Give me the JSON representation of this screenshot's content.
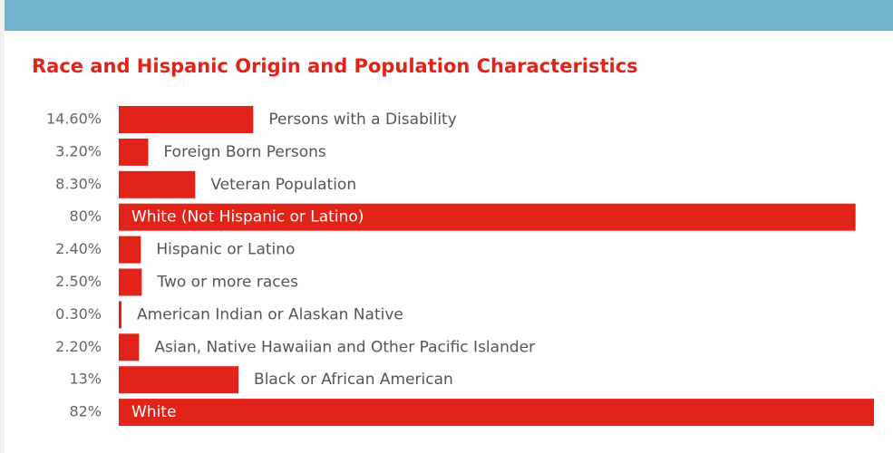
{
  "chart_data": {
    "type": "bar",
    "orientation": "horizontal",
    "title": "Race and Hispanic Origin and Population Characteristics",
    "categories": [
      "Persons with a Disability",
      "Foreign Born Persons",
      "Veteran Population",
      "White (Not Hispanic or Latino)",
      "Hispanic or Latino",
      "Two or more races",
      "American Indian or Alaskan Native",
      "Asian, Native Hawaiian and Other Pacific Islander",
      "Black or African American",
      "White"
    ],
    "values": [
      14.6,
      3.2,
      8.3,
      80,
      2.4,
      2.5,
      0.3,
      2.2,
      13,
      82
    ],
    "value_labels": [
      "14.60%",
      "3.20%",
      "8.30%",
      "80%",
      "2.40%",
      "2.50%",
      "0.30%",
      "2.20%",
      "13%",
      "82%"
    ],
    "color": "#e2231a"
  }
}
